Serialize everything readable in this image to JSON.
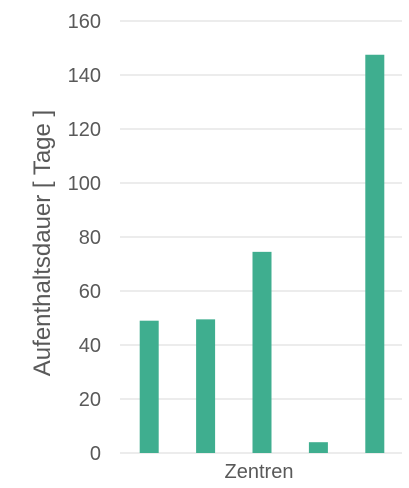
{
  "chart_data": {
    "type": "bar",
    "categories": [
      "",
      "",
      "",
      "",
      ""
    ],
    "values": [
      49,
      49.5,
      74.5,
      4,
      147.5
    ],
    "xlabel": "Zentren",
    "ylabel": "Aufenthaltsdauer  [ Tage ]",
    "ylim": [
      0,
      160
    ],
    "yticks": [
      0,
      20,
      40,
      60,
      80,
      100,
      120,
      140,
      160
    ],
    "grid": true,
    "legend": "none",
    "colors": {
      "bar": "#3fae8f",
      "grid": "#d9d9d9",
      "text": "#595959"
    }
  }
}
